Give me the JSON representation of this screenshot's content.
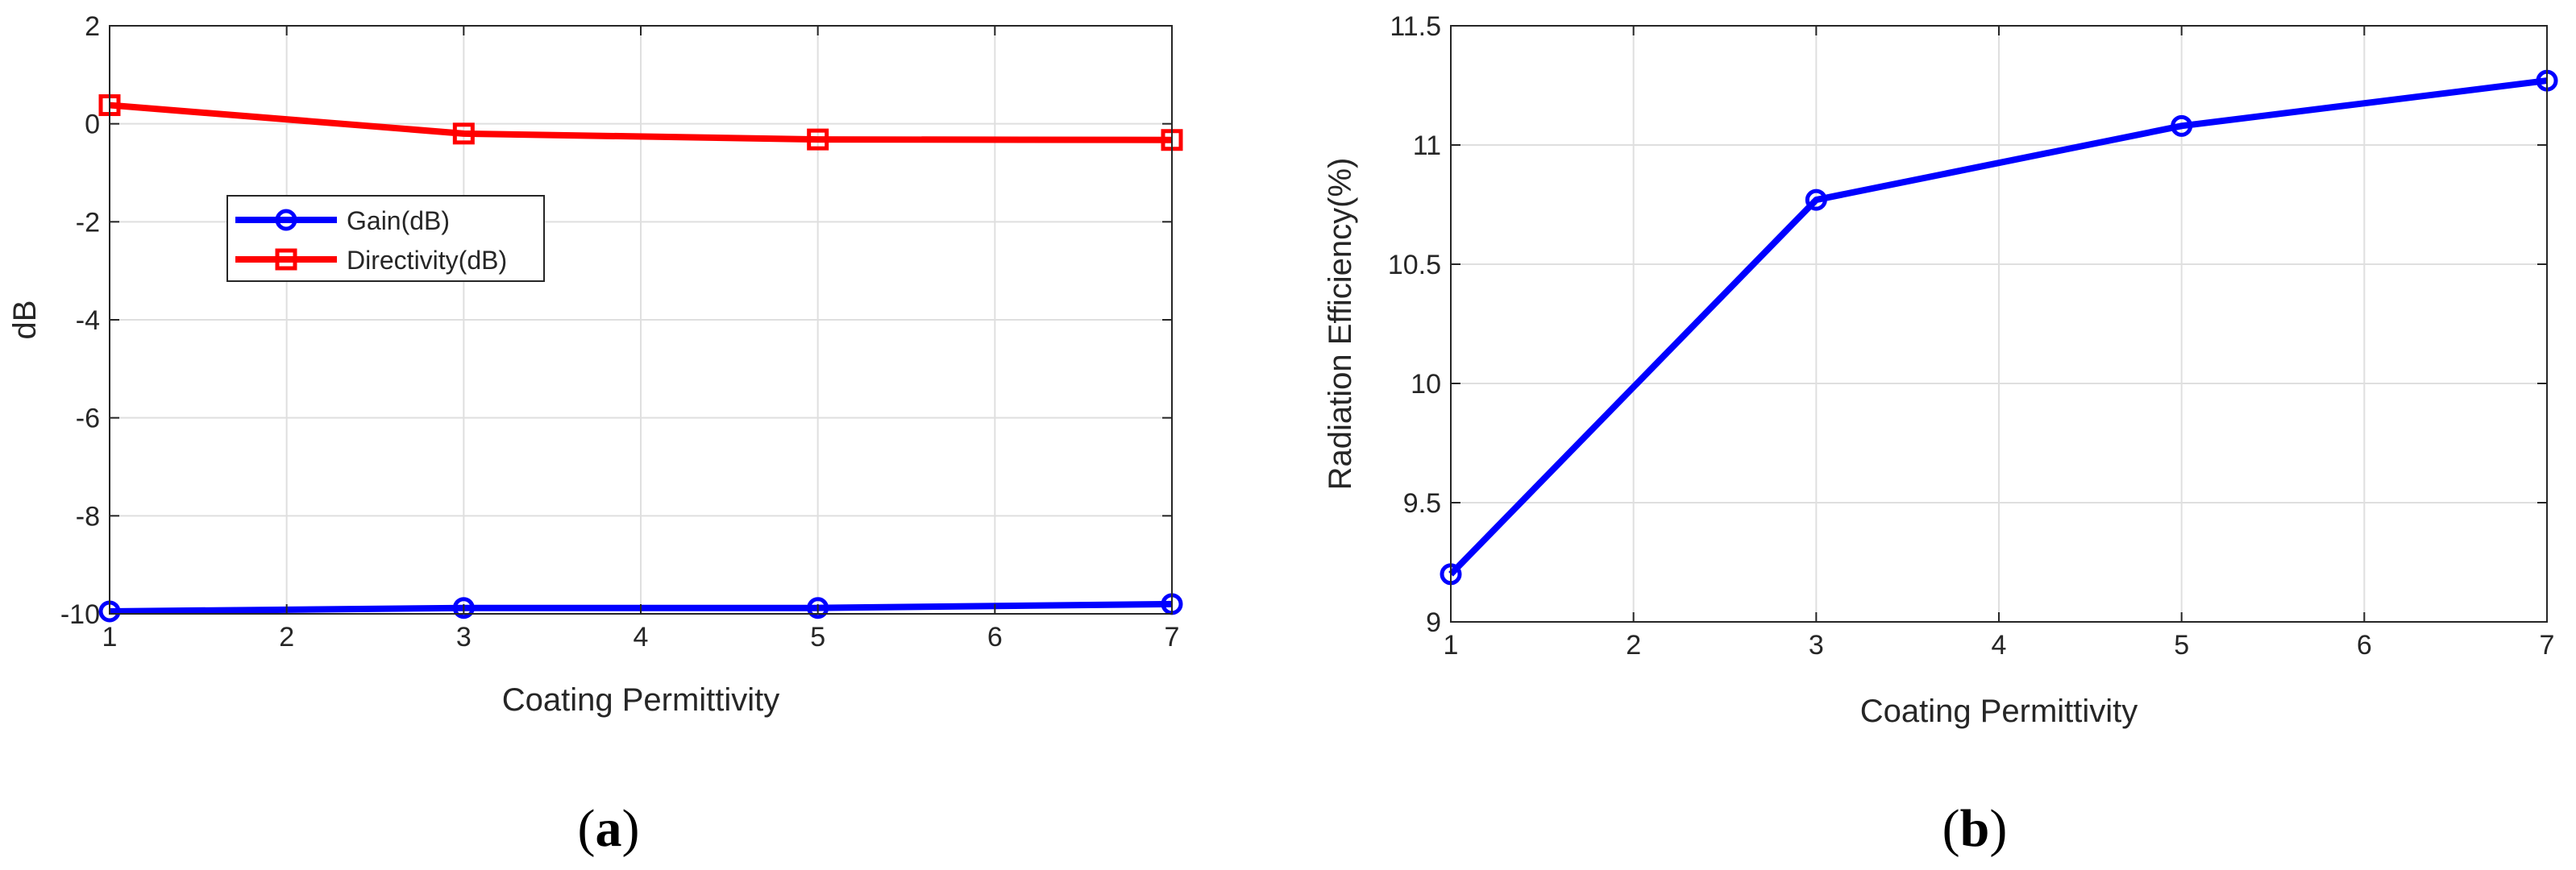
{
  "chart_data": [
    {
      "type": "line",
      "panel_label": "(a)",
      "xlabel": "Coating Permittivity",
      "ylabel": "dB",
      "xlim": [
        1,
        7
      ],
      "ylim": [
        -10,
        2
      ],
      "xticks": [
        1,
        2,
        3,
        4,
        5,
        6,
        7
      ],
      "yticks": [
        -10,
        -8,
        -6,
        -4,
        -2,
        0,
        2
      ],
      "grid": true,
      "legend_position": "upper-left",
      "series": [
        {
          "name": "Gain(dB)",
          "color": "#0000ff",
          "marker": "circle",
          "x": [
            1,
            3,
            5,
            7
          ],
          "y": [
            -9.95,
            -9.88,
            -9.88,
            -9.8
          ]
        },
        {
          "name": "Directivity(dB)",
          "color": "#ff0000",
          "marker": "square",
          "x": [
            1,
            3,
            5,
            7
          ],
          "y": [
            0.38,
            -0.2,
            -0.32,
            -0.33
          ]
        }
      ]
    },
    {
      "type": "line",
      "panel_label": "(b)",
      "xlabel": "Coating Permittivity",
      "ylabel": "Radiation Efficiency(%)",
      "xlim": [
        1,
        7
      ],
      "ylim": [
        9,
        11.5
      ],
      "xticks": [
        1,
        2,
        3,
        4,
        5,
        6,
        7
      ],
      "yticks": [
        9,
        9.5,
        10,
        10.5,
        11,
        11.5
      ],
      "grid": true,
      "series": [
        {
          "color": "#0000ff",
          "marker": "circle",
          "x": [
            1,
            3,
            5,
            7
          ],
          "y": [
            9.2,
            10.77,
            11.08,
            11.27
          ]
        }
      ]
    }
  ]
}
